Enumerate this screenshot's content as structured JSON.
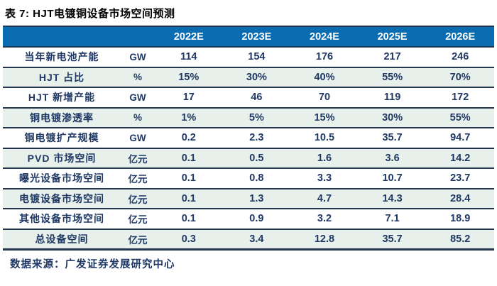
{
  "colors": {
    "header_bg": "#0a6cb1",
    "header_text": "#ffffff",
    "row_bg": "#ffffff",
    "row_alt_bg": "#e7f0eb",
    "cell_text": "#1f3864",
    "border": "#23364e",
    "title_text": "#000000"
  },
  "chart_data": {
    "type": "table",
    "title": "表 7: HJT电镀铜设备市场空间预测",
    "year_columns": [
      "2022E",
      "2023E",
      "2024E",
      "2025E",
      "2026E"
    ],
    "rows": [
      {
        "label": "当年新电池产能",
        "unit": "GW",
        "values": [
          "114",
          "154",
          "176",
          "217",
          "246"
        ]
      },
      {
        "label": "HJT 占比",
        "unit": "%",
        "values": [
          "15%",
          "30%",
          "40%",
          "55%",
          "70%"
        ]
      },
      {
        "label": "HJT 新增产能",
        "unit": "GW",
        "values": [
          "17",
          "46",
          "70",
          "119",
          "172"
        ]
      },
      {
        "label": "铜电镀渗透率",
        "unit": "%",
        "values": [
          "1%",
          "5%",
          "15%",
          "30%",
          "55%"
        ]
      },
      {
        "label": "铜电镀扩产规模",
        "unit": "GW",
        "values": [
          "0.2",
          "2.3",
          "10.5",
          "35.7",
          "94.7"
        ]
      },
      {
        "label": "PVD 市场空间",
        "unit": "亿元",
        "values": [
          "0.1",
          "0.5",
          "1.6",
          "3.6",
          "14.2"
        ]
      },
      {
        "label": "曝光设备市场空间",
        "unit": "亿元",
        "values": [
          "0.1",
          "0.8",
          "3.3",
          "10.7",
          "23.7"
        ]
      },
      {
        "label": "电镀设备市场空间",
        "unit": "亿元",
        "values": [
          "0.1",
          "1.3",
          "4.7",
          "14.3",
          "28.4"
        ]
      },
      {
        "label": "其他设备市场空间",
        "unit": "亿元",
        "values": [
          "0.1",
          "0.9",
          "3.2",
          "7.1",
          "18.9"
        ]
      },
      {
        "label": "总设备空间",
        "unit": "亿元",
        "values": [
          "0.3",
          "3.4",
          "12.8",
          "35.7",
          "85.2"
        ]
      }
    ],
    "source": "数据来源：广发证券发展研究中心"
  }
}
